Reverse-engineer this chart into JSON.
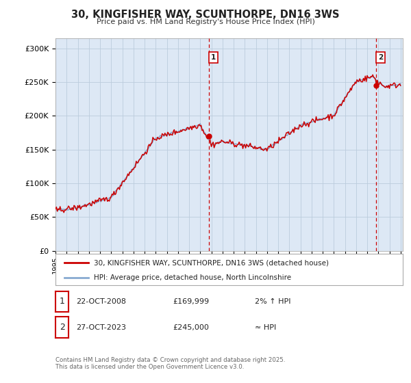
{
  "title": "30, KINGFISHER WAY, SCUNTHORPE, DN16 3WS",
  "subtitle": "Price paid vs. HM Land Registry's House Price Index (HPI)",
  "ylabel_ticks": [
    "£0",
    "£50K",
    "£100K",
    "£150K",
    "£200K",
    "£250K",
    "£300K"
  ],
  "ytick_values": [
    0,
    50000,
    100000,
    150000,
    200000,
    250000,
    300000
  ],
  "ylim": [
    0,
    315000
  ],
  "xlim_start": 1995.0,
  "xlim_end": 2026.2,
  "sale1_x": 2008.81,
  "sale1_y": 169999,
  "sale2_x": 2023.82,
  "sale2_y": 245000,
  "sale1_date": "22-OCT-2008",
  "sale1_price": "£169,999",
  "sale1_note": "2% ↑ HPI",
  "sale2_date": "27-OCT-2023",
  "sale2_price": "£245,000",
  "sale2_note": "≈ HPI",
  "legend_line1": "30, KINGFISHER WAY, SCUNTHORPE, DN16 3WS (detached house)",
  "legend_line2": "HPI: Average price, detached house, North Lincolnshire",
  "footer": "Contains HM Land Registry data © Crown copyright and database right 2025.\nThis data is licensed under the Open Government Licence v3.0.",
  "line_color_red": "#cc0000",
  "line_color_blue": "#88aad0",
  "vline_color": "#cc0000",
  "bg_color": "#dde8f5",
  "plot_bg": "#ffffff",
  "grid_color": "#bbccdd",
  "ann_box_color": "#cc0000",
  "xtick_years": [
    1995,
    1996,
    1997,
    1998,
    1999,
    2000,
    2001,
    2002,
    2003,
    2004,
    2005,
    2006,
    2007,
    2008,
    2009,
    2010,
    2011,
    2012,
    2013,
    2014,
    2015,
    2016,
    2017,
    2018,
    2019,
    2020,
    2021,
    2022,
    2023,
    2024,
    2025,
    2026
  ]
}
